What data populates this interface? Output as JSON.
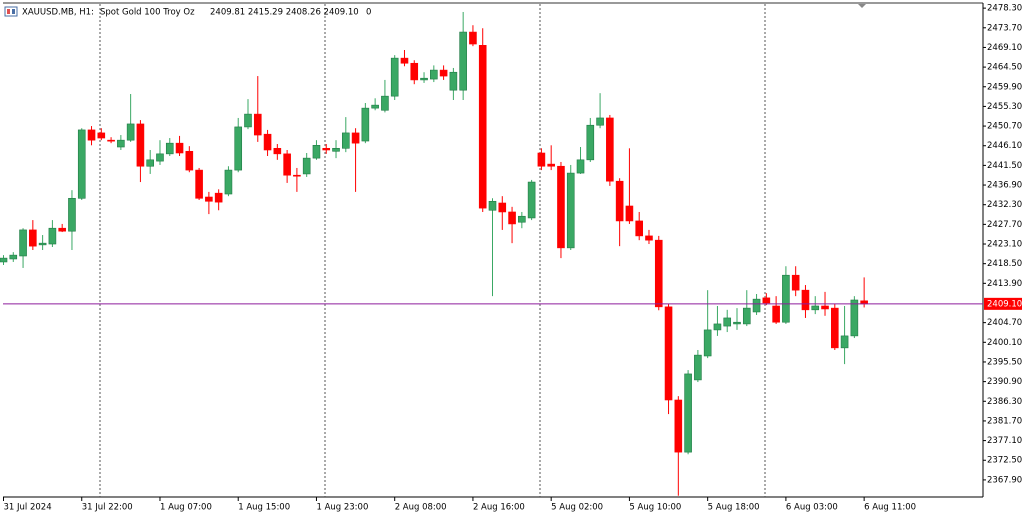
{
  "header": {
    "symbol": "XAUUSD.MB, H1:",
    "description": "Spot Gold 100 Troy Oz",
    "ohlc": "2409.81 2415.29 2408.26 2409.10",
    "volume": "0"
  },
  "chart_data": {
    "type": "candlestick",
    "categories": [
      "31 Jul 2024",
      null,
      null,
      null,
      null,
      null,
      null,
      null,
      "31 Jul 22:00",
      null,
      null,
      null,
      null,
      null,
      null,
      null,
      "1 Aug 07:00",
      null,
      null,
      null,
      null,
      null,
      null,
      null,
      "1 Aug 15:00",
      null,
      null,
      null,
      null,
      null,
      null,
      null,
      "1 Aug 23:00",
      null,
      null,
      null,
      null,
      null,
      null,
      null,
      "2 Aug 08:00",
      null,
      null,
      null,
      null,
      null,
      null,
      null,
      "2 Aug 16:00",
      null,
      null,
      null,
      null,
      null,
      null,
      null,
      "5 Aug 02:00",
      null,
      null,
      null,
      null,
      null,
      null,
      null,
      "5 Aug 10:00",
      null,
      null,
      null,
      null,
      null,
      null,
      null,
      "5 Aug 18:00",
      null,
      null,
      null,
      null,
      null,
      null,
      null,
      "6 Aug 03:00",
      null,
      null,
      null,
      null,
      null,
      null,
      null,
      "6 Aug 11:00"
    ],
    "open": [
      2418.9,
      2419.6,
      2420.3,
      2426.4,
      2422.9,
      2423.1,
      2426.8,
      2426.1,
      2433.8,
      2449.8,
      2449.1,
      2447.4,
      2445.8,
      2447.4,
      2451.2,
      2441.3,
      2442.5,
      2444.2,
      2446.7,
      2444.8,
      2440.4,
      2434.1,
      2435.0,
      2434.8,
      2440.4,
      2450.5,
      2453.5,
      2448.8,
      2445.5,
      2444.2,
      2439.2,
      2439.5,
      2443.2,
      2445.5,
      2444.8,
      2445.5,
      2449.1,
      2447.2,
      2454.9,
      2454.4,
      2457.7,
      2466.6,
      2465.4,
      2461.5,
      2461.7,
      2463.8,
      2459.1,
      2459.1,
      2472.7,
      2469.6,
      2431.0,
      2432.7,
      2430.6,
      2428.2,
      2429.2,
      2444.4,
      2441.8,
      2441.3,
      2422.2,
      2439.7,
      2442.8,
      2450.9,
      2452.6,
      2437.8,
      2432.0,
      2428.5,
      2425.0,
      2424.0,
      2408.4,
      2386.6,
      2374.4,
      2391.3,
      2396.9,
      2403.0,
      2403.9,
      2404.4,
      2404.4,
      2407.2,
      2410.5,
      2408.6,
      2404.8,
      2415.8,
      2412.3,
      2407.7,
      2408.6,
      2408.1,
      2398.8,
      2401.6,
      2409.81
    ],
    "high": [
      2420.5,
      2421.2,
      2426.8,
      2428.7,
      2425.2,
      2428.7,
      2427.8,
      2435.7,
      2450.2,
      2450.7,
      2450.2,
      2448.1,
      2448.6,
      2458.2,
      2452.1,
      2445.1,
      2447.4,
      2447.9,
      2448.4,
      2446.0,
      2440.9,
      2435.3,
      2435.9,
      2441.3,
      2452.6,
      2457.0,
      2462.4,
      2449.8,
      2446.5,
      2445.1,
      2440.9,
      2444.4,
      2447.4,
      2446.5,
      2447.4,
      2452.8,
      2450.2,
      2456.1,
      2457.2,
      2461.5,
      2467.3,
      2468.5,
      2466.1,
      2463.3,
      2464.9,
      2464.9,
      2464.3,
      2477.4,
      2474.3,
      2473.6,
      2433.8,
      2434.3,
      2431.8,
      2430.6,
      2438.1,
      2445.5,
      2446.2,
      2442.3,
      2441.6,
      2445.8,
      2452.6,
      2458.4,
      2453.3,
      2438.5,
      2445.5,
      2430.6,
      2426.4,
      2425.0,
      2409.1,
      2387.5,
      2393.6,
      2398.3,
      2412.3,
      2408.6,
      2407.7,
      2408.1,
      2412.3,
      2411.4,
      2411.6,
      2410.9,
      2417.9,
      2417.9,
      2413.5,
      2410.9,
      2411.9,
      2409.1,
      2408.6,
      2410.9,
      2415.29
    ],
    "low": [
      2418.2,
      2418.9,
      2417.5,
      2421.7,
      2421.7,
      2422.4,
      2425.9,
      2421.7,
      2433.4,
      2446.2,
      2447.4,
      2446.7,
      2445.1,
      2447.0,
      2437.6,
      2439.5,
      2441.6,
      2443.7,
      2443.7,
      2439.9,
      2433.4,
      2430.1,
      2431.0,
      2434.3,
      2439.9,
      2450.0,
      2447.0,
      2443.7,
      2442.8,
      2437.4,
      2435.3,
      2438.8,
      2442.8,
      2444.2,
      2443.2,
      2444.6,
      2435.3,
      2446.7,
      2454.4,
      2453.9,
      2456.8,
      2464.7,
      2460.5,
      2460.8,
      2461.0,
      2461.5,
      2456.8,
      2456.8,
      2469.4,
      2430.6,
      2410.9,
      2426.4,
      2423.3,
      2426.8,
      2428.7,
      2440.4,
      2440.4,
      2419.8,
      2421.7,
      2439.5,
      2442.3,
      2450.2,
      2436.7,
      2422.6,
      2427.8,
      2424.0,
      2423.1,
      2407.6,
      2383.3,
      2364.2,
      2373.9,
      2390.8,
      2396.4,
      2401.6,
      2402.5,
      2403.0,
      2403.9,
      2406.5,
      2408.8,
      2404.4,
      2404.4,
      2410.9,
      2405.8,
      2406.7,
      2406.3,
      2398.3,
      2395.0,
      2401.1,
      2408.26
    ],
    "close": [
      2419.8,
      2420.5,
      2426.4,
      2422.6,
      2423.3,
      2426.8,
      2426.1,
      2433.8,
      2449.8,
      2447.4,
      2447.9,
      2447.2,
      2447.4,
      2451.2,
      2441.3,
      2442.8,
      2444.2,
      2446.7,
      2444.4,
      2440.4,
      2433.8,
      2433.1,
      2432.9,
      2440.4,
      2450.5,
      2453.5,
      2448.6,
      2445.1,
      2444.2,
      2439.2,
      2439.0,
      2443.2,
      2446.2,
      2445.1,
      2445.5,
      2449.1,
      2446.7,
      2454.9,
      2455.6,
      2457.7,
      2466.6,
      2465.4,
      2461.5,
      2461.9,
      2463.8,
      2462.4,
      2463.3,
      2472.7,
      2469.9,
      2431.5,
      2433.1,
      2430.6,
      2427.8,
      2429.6,
      2437.6,
      2441.3,
      2441.3,
      2422.2,
      2439.7,
      2442.8,
      2450.9,
      2452.6,
      2437.8,
      2428.5,
      2428.5,
      2425.0,
      2424.0,
      2408.4,
      2386.6,
      2374.4,
      2392.7,
      2397.1,
      2403.0,
      2404.4,
      2405.8,
      2404.8,
      2408.1,
      2410.2,
      2409.3,
      2404.8,
      2415.8,
      2412.3,
      2407.7,
      2408.6,
      2407.9,
      2398.8,
      2401.6,
      2410.0,
      2409.1
    ],
    "up_color": "#3aa864",
    "down_color": "#ff0000",
    "current_price": {
      "value": 2409.1,
      "label": "2409.10"
    },
    "price_line_color": "#8e1c9c",
    "ylim": [
      2363.9,
      2479.5
    ],
    "yticks": [
      {
        "value": 2478.3,
        "label": "2478.30"
      },
      {
        "value": 2473.7,
        "label": "2473.70"
      },
      {
        "value": 2469.1,
        "label": "2469.10"
      },
      {
        "value": 2464.5,
        "label": "2464.50"
      },
      {
        "value": 2459.9,
        "label": "2459.90"
      },
      {
        "value": 2455.3,
        "label": "2455.30"
      },
      {
        "value": 2450.7,
        "label": "2450.70"
      },
      {
        "value": 2446.1,
        "label": "2446.10"
      },
      {
        "value": 2441.5,
        "label": "2441.50"
      },
      {
        "value": 2436.9,
        "label": "2436.90"
      },
      {
        "value": 2432.3,
        "label": "2432.30"
      },
      {
        "value": 2427.7,
        "label": "2427.70"
      },
      {
        "value": 2423.1,
        "label": "2423.10"
      },
      {
        "value": 2418.5,
        "label": "2418.50"
      },
      {
        "value": 2413.9,
        "label": "2413.90"
      },
      {
        "value": 2404.7,
        "label": "2404.70"
      },
      {
        "value": 2400.1,
        "label": "2400.10"
      },
      {
        "value": 2395.5,
        "label": "2395.50"
      },
      {
        "value": 2390.9,
        "label": "2390.90"
      },
      {
        "value": 2386.3,
        "label": "2386.30"
      },
      {
        "value": 2381.7,
        "label": "2381.70"
      },
      {
        "value": 2377.1,
        "label": "2377.10"
      },
      {
        "value": 2372.5,
        "label": "2372.50"
      },
      {
        "value": 2367.9,
        "label": "2367.90"
      }
    ],
    "grid": false
  }
}
